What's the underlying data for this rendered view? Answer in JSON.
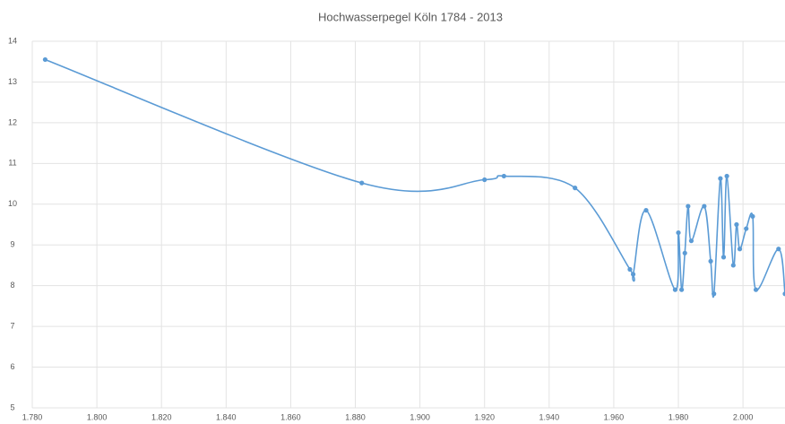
{
  "chart_data": {
    "type": "line",
    "title": "Hochwasserpegel Köln 1784 - 2013",
    "x": [
      1784,
      1882,
      1920,
      1926,
      1948,
      1965,
      1966,
      1970,
      1979,
      1980,
      1981,
      1982,
      1983,
      1984,
      1988,
      1990,
      1991,
      1993,
      1994,
      1995,
      1997,
      1998,
      1999,
      2001,
      2003,
      2004,
      2011,
      2013
    ],
    "series": [
      {
        "color": "#5b9bd5",
        "values": [
          13.55,
          10.52,
          10.6,
          10.69,
          10.4,
          8.4,
          8.28,
          9.85,
          7.9,
          9.3,
          7.9,
          8.8,
          9.95,
          9.1,
          9.95,
          8.6,
          7.8,
          10.63,
          8.7,
          10.69,
          8.5,
          9.5,
          8.9,
          9.4,
          9.7,
          7.9,
          8.9,
          7.8
        ]
      }
    ],
    "xlim": [
      1780,
      2013
    ],
    "ylim": [
      5,
      14
    ],
    "xticks": [
      {
        "value": 1780,
        "label": "1.780"
      },
      {
        "value": 1800,
        "label": "1.800"
      },
      {
        "value": 1820,
        "label": "1.820"
      },
      {
        "value": 1840,
        "label": "1.840"
      },
      {
        "value": 1860,
        "label": "1.860"
      },
      {
        "value": 1880,
        "label": "1.880"
      },
      {
        "value": 1900,
        "label": "1.900"
      },
      {
        "value": 1920,
        "label": "1.920"
      },
      {
        "value": 1940,
        "label": "1.940"
      },
      {
        "value": 1960,
        "label": "1.960"
      },
      {
        "value": 1980,
        "label": "1.980"
      },
      {
        "value": 2000,
        "label": "2.000"
      }
    ],
    "yticks": [
      5,
      6,
      7,
      8,
      9,
      10,
      11,
      12,
      13,
      14
    ],
    "grid": true
  }
}
